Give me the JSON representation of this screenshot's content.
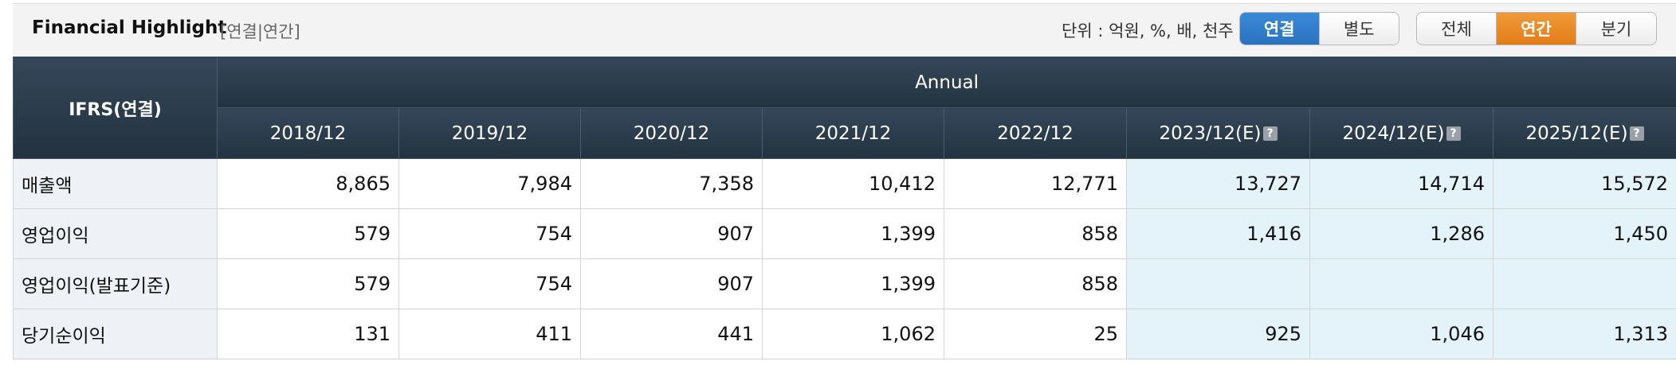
{
  "header": {
    "title": "Financial Highlight",
    "subtitle": "[연결|연간]",
    "unit_text": "단위 : 억원, %, 배, 천주",
    "scope_buttons": [
      {
        "label": "연결",
        "active": true
      },
      {
        "label": "별도",
        "active": false
      }
    ],
    "period_buttons": [
      {
        "label": "전체",
        "active": false
      },
      {
        "label": "연간",
        "active": true
      },
      {
        "label": "분기",
        "active": false
      }
    ]
  },
  "table": {
    "corner_label": "IFRS(연결)",
    "group_label": "Annual",
    "help_icon_text": "?",
    "columns": [
      {
        "label": "2018/12",
        "estimate": false
      },
      {
        "label": "2019/12",
        "estimate": false
      },
      {
        "label": "2020/12",
        "estimate": false
      },
      {
        "label": "2021/12",
        "estimate": false
      },
      {
        "label": "2022/12",
        "estimate": false
      },
      {
        "label": "2023/12(E)",
        "estimate": true
      },
      {
        "label": "2024/12(E)",
        "estimate": true
      },
      {
        "label": "2025/12(E)",
        "estimate": true
      }
    ],
    "rows": [
      {
        "label": "매출액",
        "values": [
          "8,865",
          "7,984",
          "7,358",
          "10,412",
          "12,771",
          "13,727",
          "14,714",
          "15,572"
        ]
      },
      {
        "label": "영업이익",
        "values": [
          "579",
          "754",
          "907",
          "1,399",
          "858",
          "1,416",
          "1,286",
          "1,450"
        ]
      },
      {
        "label": "영업이익(발표기준)",
        "values": [
          "579",
          "754",
          "907",
          "1,399",
          "858",
          "",
          "",
          ""
        ]
      },
      {
        "label": "당기순이익",
        "values": [
          "131",
          "411",
          "441",
          "1,062",
          "25",
          "925",
          "1,046",
          "1,313"
        ]
      }
    ]
  },
  "colors": {
    "header_dark": "#2b3b4b",
    "active_blue": "#2f7cc9",
    "active_orange": "#e8892a",
    "estimate_bg": "#e3f3f9",
    "label_bg": "#eef2f6"
  }
}
